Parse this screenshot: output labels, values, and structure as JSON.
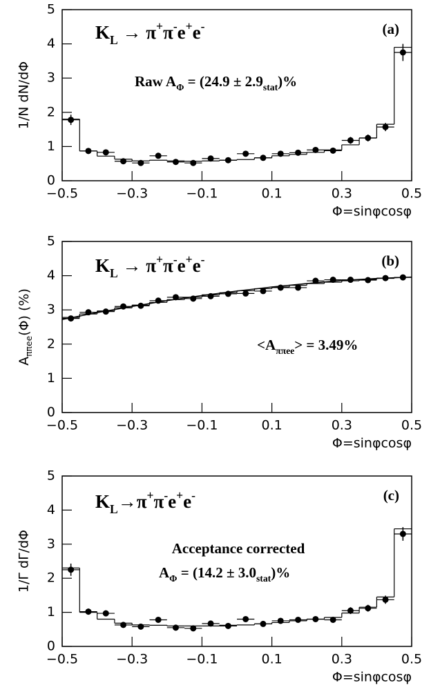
{
  "chart_data": [
    {
      "type": "scatter",
      "panel_label": "(a)",
      "y_label": "1/N dN/dΦ",
      "x_label": "Φ=sinφcosφ",
      "annotations": [
        [
          {
            "text": "K"
          },
          {
            "text": "L",
            "sub": true
          },
          {
            "text": " → π"
          },
          {
            "text": "+",
            "sup": true
          },
          {
            "text": "π"
          },
          {
            "text": "-",
            "sup": true
          },
          {
            "text": "e"
          },
          {
            "text": "+",
            "sup": true
          },
          {
            "text": "e"
          },
          {
            "text": "-",
            "sup": true
          }
        ],
        [
          {
            "text": "Raw A"
          },
          {
            "text": "Φ",
            "sub": true
          },
          {
            "text": " = (24.9 ± 2.9"
          },
          {
            "text": "stat",
            "sub": true
          },
          {
            "text": ")%"
          }
        ]
      ],
      "x": [
        -0.475,
        -0.425,
        -0.375,
        -0.325,
        -0.275,
        -0.225,
        -0.175,
        -0.125,
        -0.075,
        -0.025,
        0.025,
        0.075,
        0.125,
        0.175,
        0.225,
        0.275,
        0.325,
        0.375,
        0.425,
        0.475
      ],
      "values": [
        1.78,
        0.87,
        0.83,
        0.57,
        0.52,
        0.73,
        0.55,
        0.52,
        0.65,
        0.6,
        0.79,
        0.67,
        0.79,
        0.82,
        0.9,
        0.88,
        1.18,
        1.25,
        1.57,
        3.75
      ],
      "errors": [
        0.15,
        0.08,
        0.08,
        0.06,
        0.06,
        0.08,
        0.06,
        0.06,
        0.07,
        0.07,
        0.08,
        0.07,
        0.08,
        0.08,
        0.08,
        0.08,
        0.1,
        0.1,
        0.12,
        0.25
      ],
      "histogram": {
        "bins": [
          -0.5,
          -0.45,
          -0.4,
          -0.35,
          -0.3,
          -0.25,
          -0.2,
          -0.15,
          -0.1,
          -0.05,
          0,
          0.05,
          0.1,
          0.15,
          0.2,
          0.25,
          0.3,
          0.35,
          0.4,
          0.45,
          0.5
        ],
        "values": [
          1.8,
          0.87,
          0.72,
          0.63,
          0.58,
          0.6,
          0.58,
          0.57,
          0.58,
          0.6,
          0.62,
          0.67,
          0.73,
          0.77,
          0.83,
          0.9,
          1.05,
          1.25,
          1.65,
          3.9
        ]
      },
      "color": "#000000",
      "xlim": [
        -0.5,
        0.5
      ],
      "ylim": [
        0,
        5
      ],
      "xticks": [
        {
          "value": -0.5,
          "label": "−0.5"
        },
        {
          "value": -0.3,
          "label": "−0.3"
        },
        {
          "value": -0.1,
          "label": "−0.1"
        },
        0.1,
        0.3,
        0.5
      ],
      "yticks": [
        0,
        1,
        2,
        3,
        4,
        5
      ]
    },
    {
      "type": "scatter",
      "panel_label": "(b)",
      "y_label": [
        {
          "text": "A"
        },
        {
          "text": "ππee",
          "sub": true
        },
        {
          "text": "(Φ)  (%)"
        }
      ],
      "x_label": "Φ=sinφcosφ",
      "annotations": [
        [
          {
            "text": "K"
          },
          {
            "text": "L",
            "sub": true
          },
          {
            "text": " → π"
          },
          {
            "text": "+",
            "sup": true
          },
          {
            "text": "π"
          },
          {
            "text": "-",
            "sup": true
          },
          {
            "text": "e"
          },
          {
            "text": "+",
            "sup": true
          },
          {
            "text": "e"
          },
          {
            "text": "-",
            "sup": true
          }
        ],
        [
          {
            "text": "<A"
          },
          {
            "text": "ππee",
            "sub": true
          },
          {
            "text": "> = 3.49%"
          }
        ]
      ],
      "x": [
        -0.475,
        -0.425,
        -0.375,
        -0.325,
        -0.275,
        -0.225,
        -0.175,
        -0.125,
        -0.075,
        -0.025,
        0.025,
        0.075,
        0.125,
        0.175,
        0.225,
        0.275,
        0.325,
        0.375,
        0.425,
        0.475
      ],
      "values": [
        2.75,
        2.93,
        2.95,
        3.1,
        3.12,
        3.27,
        3.37,
        3.33,
        3.4,
        3.47,
        3.48,
        3.55,
        3.65,
        3.65,
        3.85,
        3.88,
        3.88,
        3.87,
        3.93,
        3.95
      ],
      "histogram": {
        "bins": [
          -0.5,
          -0.45,
          -0.4,
          -0.35,
          -0.3,
          -0.25,
          -0.2,
          -0.15,
          -0.1,
          -0.05,
          0,
          0.05,
          0.1,
          0.15,
          0.2,
          0.25,
          0.3,
          0.35,
          0.4,
          0.45,
          0.5
        ],
        "values": [
          2.78,
          2.88,
          2.97,
          3.06,
          3.14,
          3.22,
          3.3,
          3.37,
          3.44,
          3.5,
          3.56,
          3.62,
          3.67,
          3.72,
          3.77,
          3.81,
          3.85,
          3.89,
          3.92,
          3.95
        ]
      },
      "fit": {
        "x": [
          -0.5,
          -0.4,
          -0.3,
          -0.2,
          -0.1,
          0,
          0.1,
          0.2,
          0.3,
          0.4,
          0.5
        ],
        "values": [
          2.72,
          2.92,
          3.1,
          3.27,
          3.42,
          3.55,
          3.67,
          3.77,
          3.86,
          3.92,
          3.96
        ]
      },
      "color": "#000000",
      "xlim": [
        -0.5,
        0.5
      ],
      "ylim": [
        0,
        5
      ],
      "xticks": [
        {
          "value": -0.5,
          "label": "−0.5"
        },
        {
          "value": -0.3,
          "label": "−0.3"
        },
        {
          "value": -0.1,
          "label": "−0.1"
        },
        0.1,
        0.3,
        0.5
      ],
      "yticks": [
        0,
        1,
        2,
        3,
        4,
        5
      ]
    },
    {
      "type": "scatter",
      "panel_label": "(c)",
      "y_label": "1/Γ dΓ/dΦ",
      "x_label": "Φ=sinφcosφ",
      "annotations": [
        [
          {
            "text": "K"
          },
          {
            "text": "L",
            "sub": true
          },
          {
            "text": "→π"
          },
          {
            "text": "+",
            "sup": true
          },
          {
            "text": "π"
          },
          {
            "text": "-",
            "sup": true
          },
          {
            "text": "e"
          },
          {
            "text": "+",
            "sup": true
          },
          {
            "text": "e"
          },
          {
            "text": "-",
            "sup": true
          }
        ],
        [
          {
            "text": "Acceptance corrected"
          }
        ],
        [
          {
            "text": "A"
          },
          {
            "text": "Φ",
            "sub": true
          },
          {
            "text": " = (14.2 ± 3.0"
          },
          {
            "text": "stat",
            "sub": true
          },
          {
            "text": ")%"
          }
        ]
      ],
      "x": [
        -0.475,
        -0.425,
        -0.375,
        -0.325,
        -0.275,
        -0.225,
        -0.175,
        -0.125,
        -0.075,
        -0.025,
        0.025,
        0.075,
        0.125,
        0.175,
        0.225,
        0.275,
        0.325,
        0.375,
        0.425,
        0.475
      ],
      "values": [
        2.25,
        1.02,
        0.97,
        0.63,
        0.58,
        0.78,
        0.55,
        0.53,
        0.67,
        0.6,
        0.8,
        0.66,
        0.75,
        0.78,
        0.8,
        0.78,
        1.05,
        1.12,
        1.37,
        3.3
      ],
      "errors": [
        0.18,
        0.09,
        0.09,
        0.07,
        0.07,
        0.08,
        0.06,
        0.06,
        0.07,
        0.07,
        0.08,
        0.07,
        0.08,
        0.08,
        0.08,
        0.08,
        0.1,
        0.1,
        0.12,
        0.2
      ],
      "histogram": {
        "bins": [
          -0.5,
          -0.45,
          -0.4,
          -0.35,
          -0.3,
          -0.25,
          -0.2,
          -0.15,
          -0.1,
          -0.05,
          0,
          0.05,
          0.1,
          0.15,
          0.2,
          0.25,
          0.3,
          0.35,
          0.4,
          0.45,
          0.5
        ],
        "values": [
          2.3,
          1.0,
          0.8,
          0.68,
          0.63,
          0.62,
          0.6,
          0.6,
          0.6,
          0.62,
          0.63,
          0.66,
          0.7,
          0.75,
          0.8,
          0.85,
          0.98,
          1.15,
          1.45,
          3.45
        ]
      },
      "color": "#000000",
      "xlim": [
        -0.5,
        0.5
      ],
      "ylim": [
        0,
        5
      ],
      "xticks": [
        {
          "value": -0.5,
          "label": "−0.5"
        },
        {
          "value": -0.3,
          "label": "−0.3"
        },
        {
          "value": -0.1,
          "label": "−0.1"
        },
        0.1,
        0.3,
        0.5
      ],
      "yticks": [
        0,
        1,
        2,
        3,
        4,
        5
      ]
    }
  ]
}
